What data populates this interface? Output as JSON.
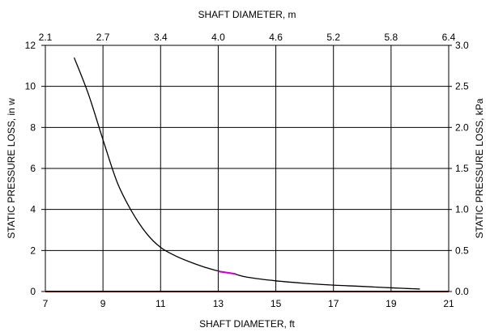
{
  "chart_data": {
    "type": "line",
    "top_axis": {
      "label": "SHAFT DIAMETER, m",
      "ticks": [
        "2.1",
        "2.7",
        "3.4",
        "4.0",
        "4.6",
        "5.2",
        "5.8",
        "6.4"
      ]
    },
    "bottom_axis": {
      "label": "SHAFT DIAMETER, ft",
      "ticks": [
        "7",
        "9",
        "11",
        "13",
        "15",
        "17",
        "19",
        "21"
      ],
      "xlim": [
        7,
        21
      ]
    },
    "left_axis": {
      "label": "STATIC PRESSURE LOSS, in w",
      "ticks": [
        "0",
        "2",
        "4",
        "6",
        "8",
        "10",
        "12"
      ],
      "ylim": [
        0,
        12
      ]
    },
    "right_axis": {
      "label": "STATIC PRESSURE LOSS, kPa",
      "ticks": [
        "0.0",
        "0.5",
        "1.0",
        "1.5",
        "2.0",
        "2.5",
        "3.0"
      ]
    },
    "grid": true,
    "series": [
      {
        "color": "#000000",
        "x": [
          8.0,
          8.5,
          9.0,
          9.5,
          10.0,
          10.5,
          11.0,
          11.5,
          12.0,
          12.5,
          13.0,
          13.5,
          14.0,
          15.0,
          16.0,
          17.0,
          18.0,
          19.0,
          20.0
        ],
        "y": [
          11.4,
          9.6,
          7.4,
          5.3,
          3.9,
          2.85,
          2.15,
          1.75,
          1.45,
          1.2,
          1.0,
          0.88,
          0.7,
          0.52,
          0.4,
          0.31,
          0.25,
          0.18,
          0.12
        ]
      }
    ],
    "baseline_color": "#8b0000",
    "highlight_color": "#cc00cc"
  }
}
